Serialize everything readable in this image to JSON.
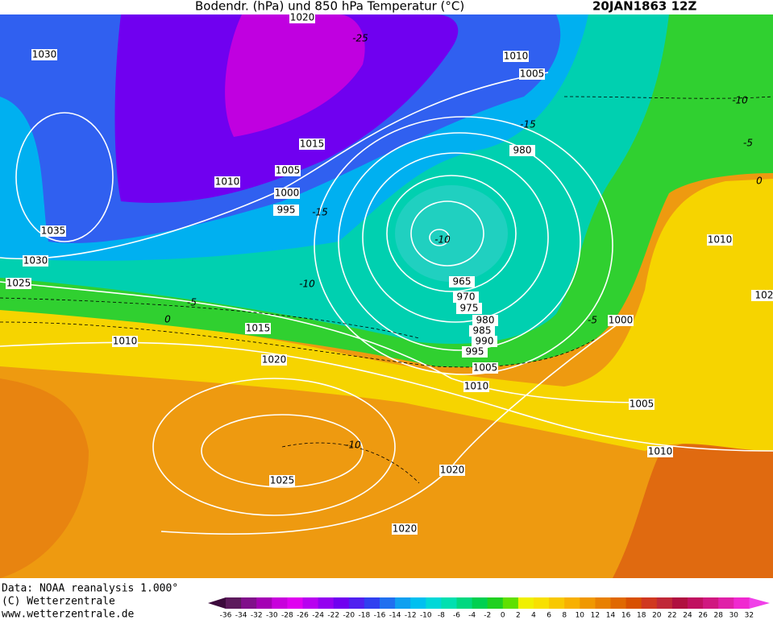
{
  "header": {
    "title": "Bodendr. (hPa) und 850 hPa Temperatur (°C)",
    "date": "20JAN1863 12Z"
  },
  "isobar_labels": [
    "1020",
    "1030",
    "1010",
    "1005",
    "1015",
    "1005",
    "1010",
    "1000",
    "995",
    "980",
    "1035",
    "1030",
    "1025",
    "1010",
    "965",
    "970",
    "975",
    "980",
    "985",
    "990",
    "995",
    "1000",
    "1015",
    "1010",
    "1020",
    "1005",
    "1010",
    "1005",
    "1010",
    "1020",
    "1025",
    "1020",
    "102"
  ],
  "temperature_labels": [
    "-25",
    "-15",
    "-10",
    "-5",
    "0",
    "-15",
    "-10",
    "-10",
    "-5",
    "0",
    "-5",
    "-10"
  ],
  "footer": {
    "data": "Data: NOAA reanalysis 1.000°",
    "copyright": "(C) Wetterzentrale",
    "url": "www.wetterzentrale.de"
  },
  "colorbar": {
    "labels": [
      -36,
      -34,
      -32,
      -30,
      -28,
      -26,
      -24,
      -22,
      -20,
      -18,
      -16,
      -14,
      -12,
      -10,
      -8,
      -6,
      -4,
      -2,
      0,
      2,
      4,
      6,
      8,
      10,
      12,
      14,
      16,
      18,
      20,
      22,
      24,
      26,
      28,
      30,
      32
    ],
    "colors": [
      "#3c0a3c",
      "#5c1a5c",
      "#80108a",
      "#a400b4",
      "#c800dc",
      "#e000f0",
      "#b800f0",
      "#9400f0",
      "#7000f0",
      "#5020f0",
      "#3040f0",
      "#2070f0",
      "#10a0f0",
      "#00c0f0",
      "#00d8d8",
      "#00e0b0",
      "#00d880",
      "#00d050",
      "#20d020",
      "#60e000",
      "#f0f000",
      "#f8e000",
      "#f8c800",
      "#f8b000",
      "#f09800",
      "#e88000",
      "#e06800",
      "#d85000",
      "#d03820",
      "#c02838",
      "#b01040",
      "#c01060",
      "#d01880",
      "#e020a8",
      "#f028d0",
      "#f040e8"
    ]
  }
}
